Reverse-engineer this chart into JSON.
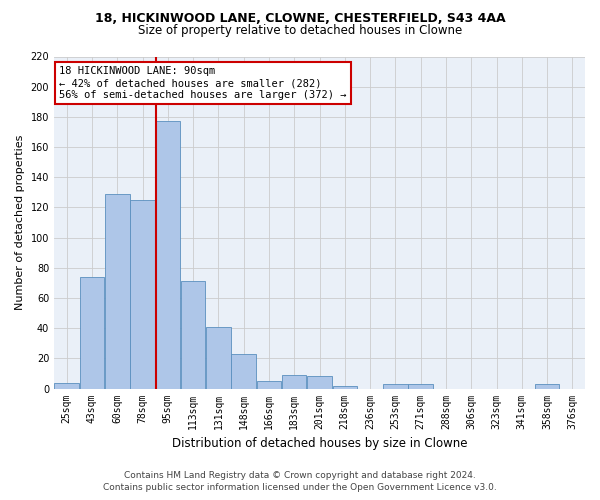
{
  "title1": "18, HICKINWOOD LANE, CLOWNE, CHESTERFIELD, S43 4AA",
  "title2": "Size of property relative to detached houses in Clowne",
  "xlabel": "Distribution of detached houses by size in Clowne",
  "ylabel": "Number of detached properties",
  "footer1": "Contains HM Land Registry data © Crown copyright and database right 2024.",
  "footer2": "Contains public sector information licensed under the Open Government Licence v3.0.",
  "annotation_line1": "18 HICKINWOOD LANE: 90sqm",
  "annotation_line2": "← 42% of detached houses are smaller (282)",
  "annotation_line3": "56% of semi-detached houses are larger (372) →",
  "bar_labels": [
    "25sqm",
    "43sqm",
    "60sqm",
    "78sqm",
    "95sqm",
    "113sqm",
    "131sqm",
    "148sqm",
    "166sqm",
    "183sqm",
    "201sqm",
    "218sqm",
    "236sqm",
    "253sqm",
    "271sqm",
    "288sqm",
    "306sqm",
    "323sqm",
    "341sqm",
    "358sqm",
    "376sqm"
  ],
  "bar_values": [
    4,
    74,
    129,
    125,
    177,
    71,
    41,
    23,
    5,
    9,
    8,
    2,
    0,
    3,
    3,
    0,
    0,
    0,
    0,
    3,
    0
  ],
  "bar_color": "#aec6e8",
  "bar_edgecolor": "#5a8fbe",
  "vline_bin": 4,
  "vline_color": "#cc0000",
  "ylim": [
    0,
    220
  ],
  "yticks": [
    0,
    20,
    40,
    60,
    80,
    100,
    120,
    140,
    160,
    180,
    200,
    220
  ],
  "bg_color": "#ffffff",
  "ax_bg_color": "#eaf0f8",
  "grid_color": "#cccccc",
  "annotation_box_color": "#cc0000",
  "title1_fontsize": 9,
  "title2_fontsize": 8.5,
  "ylabel_fontsize": 8,
  "xlabel_fontsize": 8.5,
  "footer_fontsize": 6.5,
  "annot_fontsize": 7.5,
  "tick_fontsize": 7
}
